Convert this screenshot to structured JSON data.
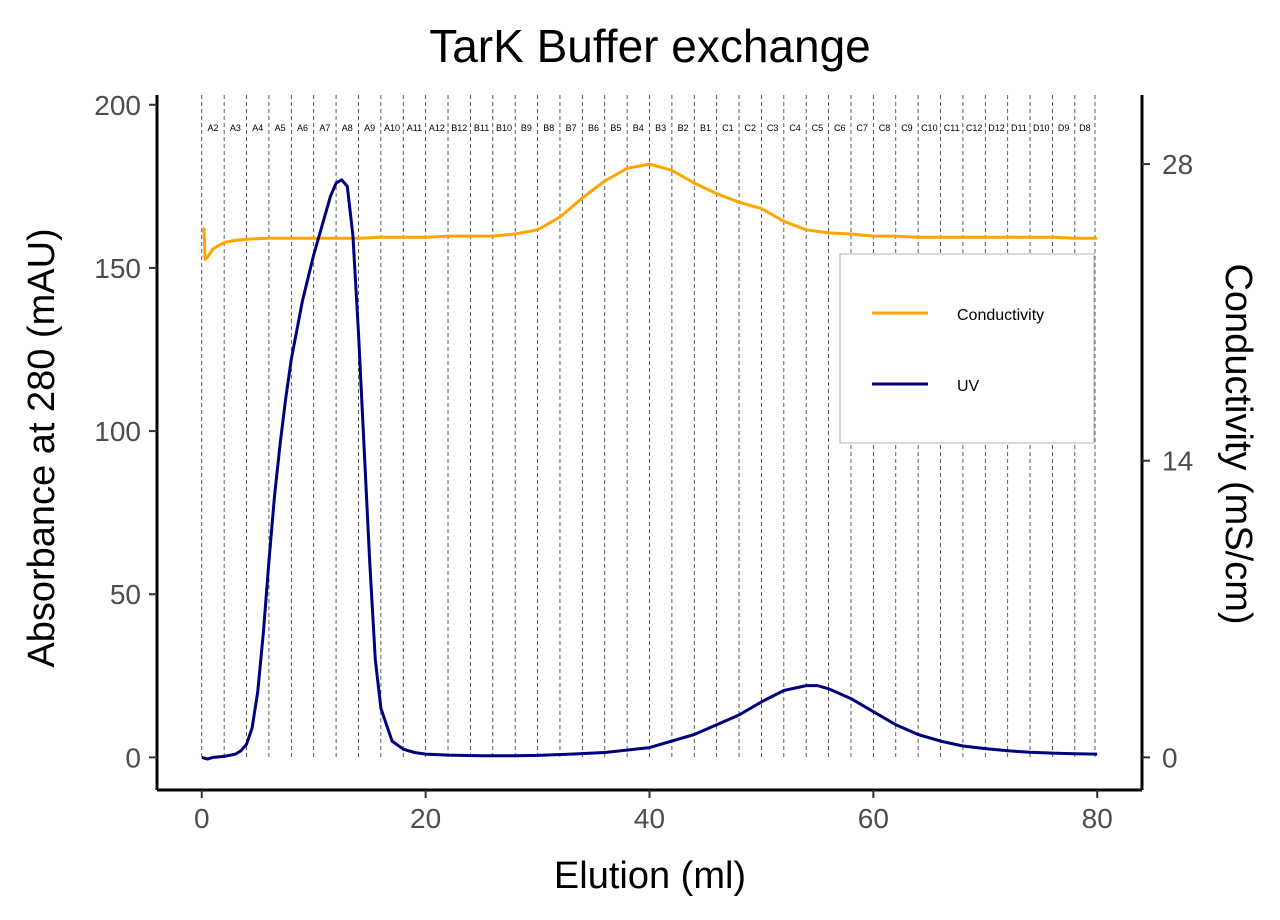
{
  "chart_data": {
    "type": "line",
    "title": "TarK Buffer exchange",
    "xlabel": "Elution (ml)",
    "ylabel": "Absorbance at 280 (mAU)",
    "y2label": "Conductivity (mS/cm)",
    "xlim": [
      -4,
      84
    ],
    "ylim": [
      -10,
      203
    ],
    "y2lim": [
      -1.54,
      31.26
    ],
    "x_ticks": [
      0,
      20,
      40,
      60,
      80
    ],
    "y_ticks": [
      0,
      50,
      100,
      150,
      200
    ],
    "y2_ticks": [
      0,
      14,
      28
    ],
    "grid": false,
    "legend_position": "right",
    "fractions": {
      "boundaries": [
        0,
        2,
        4,
        6,
        8,
        10,
        12,
        14,
        16,
        18,
        20,
        22,
        24,
        26,
        28,
        30,
        32,
        34,
        36,
        38,
        40,
        42,
        44,
        46,
        48,
        50,
        52,
        54,
        56,
        58,
        60,
        62,
        64,
        66,
        68,
        70,
        72,
        74,
        76,
        78,
        79.8
      ],
      "labels": [
        "A2",
        "A3",
        "A4",
        "A5",
        "A6",
        "A7",
        "A8",
        "A9",
        "A10",
        "A11",
        "A12",
        "B12",
        "B11",
        "B10",
        "B9",
        "B8",
        "B7",
        "B6",
        "B5",
        "B4",
        "B3",
        "B2",
        "B1",
        "C1",
        "C2",
        "C3",
        "C4",
        "C5",
        "C6",
        "C7",
        "C8",
        "C9",
        "C10",
        "C11",
        "C12",
        "D12",
        "D11",
        "D10",
        "D9",
        "D8"
      ]
    },
    "series": [
      {
        "name": "Conductivity",
        "axis": "right",
        "color": "#FFA500",
        "x": [
          0.2,
          0.3,
          0.5,
          1,
          2,
          3,
          4,
          6,
          8,
          10,
          12,
          14,
          16,
          18,
          20,
          22,
          24,
          26,
          28,
          30,
          32,
          34,
          36,
          38,
          40,
          42,
          44,
          46,
          48,
          50,
          52,
          54,
          56,
          58,
          60,
          62,
          64,
          66,
          68,
          70,
          72,
          74,
          76,
          78,
          80
        ],
        "values": [
          25.0,
          23.5,
          23.6,
          24.0,
          24.3,
          24.4,
          24.45,
          24.5,
          24.5,
          24.5,
          24.5,
          24.5,
          24.55,
          24.55,
          24.55,
          24.6,
          24.6,
          24.6,
          24.7,
          24.9,
          25.5,
          26.4,
          27.2,
          27.8,
          28.0,
          27.7,
          27.1,
          26.6,
          26.2,
          25.9,
          25.3,
          24.9,
          24.75,
          24.7,
          24.6,
          24.6,
          24.55,
          24.55,
          24.55,
          24.55,
          24.55,
          24.55,
          24.55,
          24.5,
          24.5
        ]
      },
      {
        "name": "UV",
        "axis": "left",
        "color": "#000080",
        "x": [
          0,
          0.5,
          1,
          2,
          3,
          3.5,
          4,
          4.5,
          5,
          5.5,
          6,
          6.5,
          7,
          7.5,
          8,
          9,
          10,
          11,
          11.5,
          12,
          12.5,
          13,
          13.5,
          14,
          14.5,
          15,
          15.5,
          16,
          17,
          18,
          19,
          20,
          22,
          25,
          28,
          30,
          33,
          36,
          40,
          44,
          48,
          50,
          52,
          54,
          55,
          56,
          58,
          60,
          62,
          64,
          66,
          68,
          70,
          72,
          74,
          76,
          78,
          80
        ],
        "values": [
          0,
          -0.5,
          0,
          0.3,
          1.0,
          2.0,
          4.0,
          9.0,
          20.0,
          38.0,
          60.0,
          80.0,
          96.0,
          110.0,
          122.0,
          140.0,
          154.0,
          166.0,
          172.0,
          176.0,
          177.0,
          175.0,
          160.0,
          130.0,
          95.0,
          60.0,
          30.0,
          15.0,
          5.0,
          2.5,
          1.5,
          1.0,
          0.7,
          0.5,
          0.5,
          0.6,
          1.0,
          1.5,
          3.0,
          7.0,
          13.0,
          17.0,
          20.5,
          22.0,
          22.0,
          21.0,
          18.0,
          14.0,
          10.0,
          7.0,
          5.0,
          3.5,
          2.7,
          2.0,
          1.6,
          1.3,
          1.1,
          1.0
        ]
      }
    ]
  }
}
